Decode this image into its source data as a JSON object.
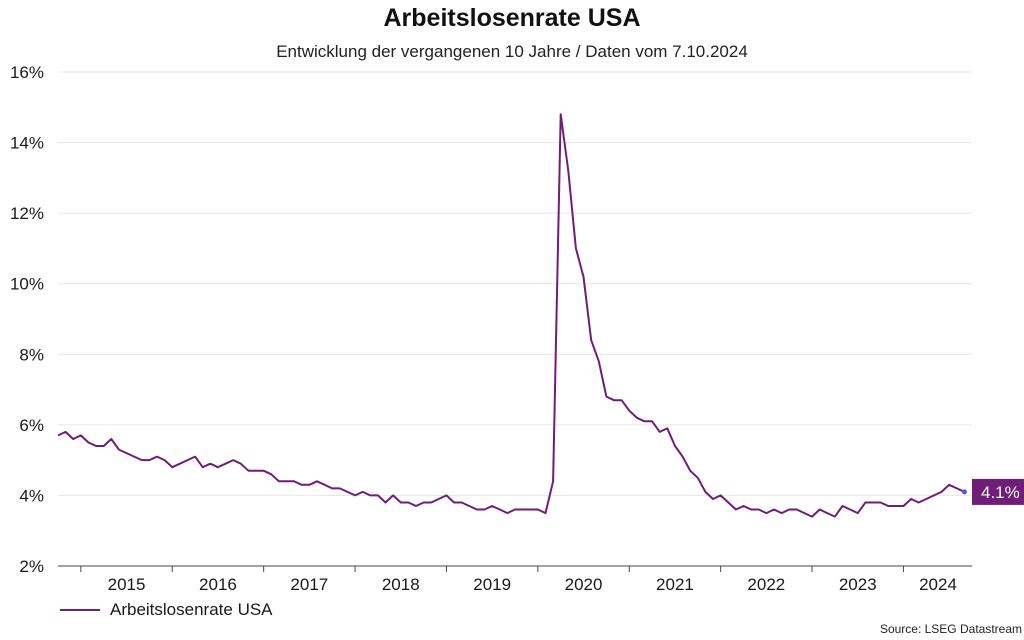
{
  "chart_data": {
    "type": "line",
    "title": "Arbeitslosenrate USA",
    "subtitle": "Entwicklung der vergangenen 10 Jahre / Daten vom 7.10.2024",
    "xlabel": "",
    "ylabel": "",
    "ylim": [
      2,
      16
    ],
    "y_ticks": [
      "2%",
      "4%",
      "6%",
      "8%",
      "10%",
      "12%",
      "14%",
      "16%"
    ],
    "x_ticks": [
      "2015",
      "2016",
      "2017",
      "2018",
      "2019",
      "2020",
      "2021",
      "2022",
      "2023",
      "2024"
    ],
    "x_start": "2014-10",
    "x_end": "2024-10",
    "grid": true,
    "legend_position": "bottom-left",
    "series": [
      {
        "name": "Arbeitslosenrate USA",
        "color": "#6f1d77",
        "x": [
          "2014-10",
          "2014-11",
          "2014-12",
          "2015-01",
          "2015-02",
          "2015-03",
          "2015-04",
          "2015-05",
          "2015-06",
          "2015-07",
          "2015-08",
          "2015-09",
          "2015-10",
          "2015-11",
          "2015-12",
          "2016-01",
          "2016-02",
          "2016-03",
          "2016-04",
          "2016-05",
          "2016-06",
          "2016-07",
          "2016-08",
          "2016-09",
          "2016-10",
          "2016-11",
          "2016-12",
          "2017-01",
          "2017-02",
          "2017-03",
          "2017-04",
          "2017-05",
          "2017-06",
          "2017-07",
          "2017-08",
          "2017-09",
          "2017-10",
          "2017-11",
          "2017-12",
          "2018-01",
          "2018-02",
          "2018-03",
          "2018-04",
          "2018-05",
          "2018-06",
          "2018-07",
          "2018-08",
          "2018-09",
          "2018-10",
          "2018-11",
          "2018-12",
          "2019-01",
          "2019-02",
          "2019-03",
          "2019-04",
          "2019-05",
          "2019-06",
          "2019-07",
          "2019-08",
          "2019-09",
          "2019-10",
          "2019-11",
          "2019-12",
          "2020-01",
          "2020-02",
          "2020-03",
          "2020-04",
          "2020-05",
          "2020-06",
          "2020-07",
          "2020-08",
          "2020-09",
          "2020-10",
          "2020-11",
          "2020-12",
          "2021-01",
          "2021-02",
          "2021-03",
          "2021-04",
          "2021-05",
          "2021-06",
          "2021-07",
          "2021-08",
          "2021-09",
          "2021-10",
          "2021-11",
          "2021-12",
          "2022-01",
          "2022-02",
          "2022-03",
          "2022-04",
          "2022-05",
          "2022-06",
          "2022-07",
          "2022-08",
          "2022-09",
          "2022-10",
          "2022-11",
          "2022-12",
          "2023-01",
          "2023-02",
          "2023-03",
          "2023-04",
          "2023-05",
          "2023-06",
          "2023-07",
          "2023-08",
          "2023-09",
          "2023-10",
          "2023-11",
          "2023-12",
          "2024-01",
          "2024-02",
          "2024-03",
          "2024-04",
          "2024-05",
          "2024-06",
          "2024-07",
          "2024-08",
          "2024-09"
        ],
        "values": [
          5.7,
          5.8,
          5.6,
          5.7,
          5.5,
          5.4,
          5.4,
          5.6,
          5.3,
          5.2,
          5.1,
          5.0,
          5.0,
          5.1,
          5.0,
          4.8,
          4.9,
          5.0,
          5.1,
          4.8,
          4.9,
          4.8,
          4.9,
          5.0,
          4.9,
          4.7,
          4.7,
          4.7,
          4.6,
          4.4,
          4.4,
          4.4,
          4.3,
          4.3,
          4.4,
          4.3,
          4.2,
          4.2,
          4.1,
          4.0,
          4.1,
          4.0,
          4.0,
          3.8,
          4.0,
          3.8,
          3.8,
          3.7,
          3.8,
          3.8,
          3.9,
          4.0,
          3.8,
          3.8,
          3.7,
          3.6,
          3.6,
          3.7,
          3.6,
          3.5,
          3.6,
          3.6,
          3.6,
          3.6,
          3.5,
          4.4,
          14.8,
          13.2,
          11.0,
          10.2,
          8.4,
          7.8,
          6.8,
          6.7,
          6.7,
          6.4,
          6.2,
          6.1,
          6.1,
          5.8,
          5.9,
          5.4,
          5.1,
          4.7,
          4.5,
          4.1,
          3.9,
          4.0,
          3.8,
          3.6,
          3.7,
          3.6,
          3.6,
          3.5,
          3.6,
          3.5,
          3.6,
          3.6,
          3.5,
          3.4,
          3.6,
          3.5,
          3.4,
          3.7,
          3.6,
          3.5,
          3.8,
          3.8,
          3.8,
          3.7,
          3.7,
          3.7,
          3.9,
          3.8,
          3.9,
          4.0,
          4.1,
          4.3,
          4.2,
          4.1
        ]
      }
    ],
    "last_value_label": "4.1%"
  },
  "legend": {
    "label": "Arbeitslosenrate USA"
  },
  "source": "Source: LSEG Datastream"
}
